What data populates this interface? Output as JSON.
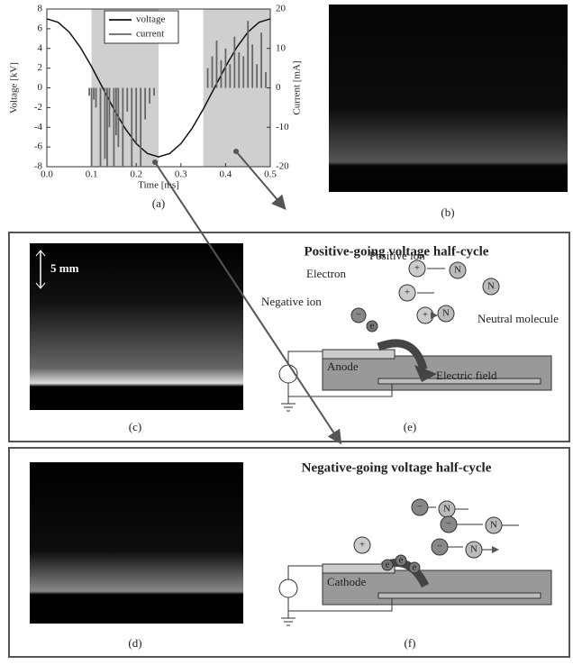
{
  "chart_data": {
    "type": "line-bar",
    "panel_label": "(a)",
    "xlabel": "Time [ms]",
    "ylabel": "Voltage [kV]",
    "y2label": "Current [mA]",
    "xlim": [
      0,
      0.5
    ],
    "xticks": [
      {
        "value": 0,
        "label": "0.0"
      },
      0.1,
      0.2,
      0.3,
      0.4,
      0.5
    ],
    "ylim": [
      -8,
      8
    ],
    "yticks": [
      -8,
      -6,
      -4,
      -2,
      0,
      2,
      4,
      6,
      8
    ],
    "y2lim": [
      -20,
      20
    ],
    "y2ticks": [
      -20,
      -10,
      0,
      10,
      20
    ],
    "shaded": [
      [
        0.1,
        0.25
      ],
      [
        0.35,
        0.5
      ]
    ],
    "legend": "upper center",
    "series": [
      {
        "name": "voltage",
        "color": "#111111",
        "kind": "line",
        "x": [
          0,
          0.025,
          0.05,
          0.075,
          0.1,
          0.125,
          0.15,
          0.175,
          0.2,
          0.225,
          0.25,
          0.275,
          0.3,
          0.325,
          0.35,
          0.375,
          0.4,
          0.425,
          0.45,
          0.475,
          0.5
        ],
        "values": [
          7,
          6.66,
          5.66,
          4.11,
          2.16,
          0,
          -2.16,
          -4.11,
          -5.66,
          -6.66,
          -7,
          -6.66,
          -5.66,
          -4.11,
          -2.16,
          0,
          2.16,
          4.11,
          5.66,
          6.66,
          7
        ]
      },
      {
        "name": "current",
        "color": "#666666",
        "kind": "bar",
        "axis": "y2",
        "x": [
          0.095,
          0.1,
          0.105,
          0.11,
          0.12,
          0.13,
          0.135,
          0.14,
          0.15,
          0.155,
          0.16,
          0.17,
          0.18,
          0.19,
          0.2,
          0.21,
          0.22,
          0.23,
          0.24,
          0.36,
          0.37,
          0.38,
          0.39,
          0.4,
          0.41,
          0.42,
          0.43,
          0.44,
          0.45,
          0.46,
          0.47,
          0.48,
          0.49
        ],
        "values": [
          -2,
          -20,
          -3,
          -5,
          -20,
          -18,
          -20,
          -10,
          -20,
          -12,
          -15,
          -20,
          -6,
          -20,
          -14,
          -20,
          -8,
          -4,
          -2,
          5,
          8,
          12,
          7,
          10,
          6,
          13,
          9,
          8,
          17,
          11,
          6,
          14,
          4
        ]
      }
    ]
  },
  "panels": {
    "b": "(b)",
    "c": "(c)",
    "d": "(d)",
    "e": "(e)",
    "f": "(f)",
    "scale": "5 mm"
  },
  "diagram_e": {
    "title": "Positive-going voltage half-cycle",
    "electron": "Electron",
    "positive_ion": "Positive ion",
    "negative_ion": "Negative ion",
    "neutral": "Neutral molecule",
    "electrode": "Anode",
    "field": "Electric field"
  },
  "diagram_f": {
    "title": "Negative-going voltage half-cycle",
    "electrode": "Cathode"
  },
  "symbols": {
    "molecule": "N",
    "positive": "+",
    "negative": "−",
    "electron": "e"
  }
}
